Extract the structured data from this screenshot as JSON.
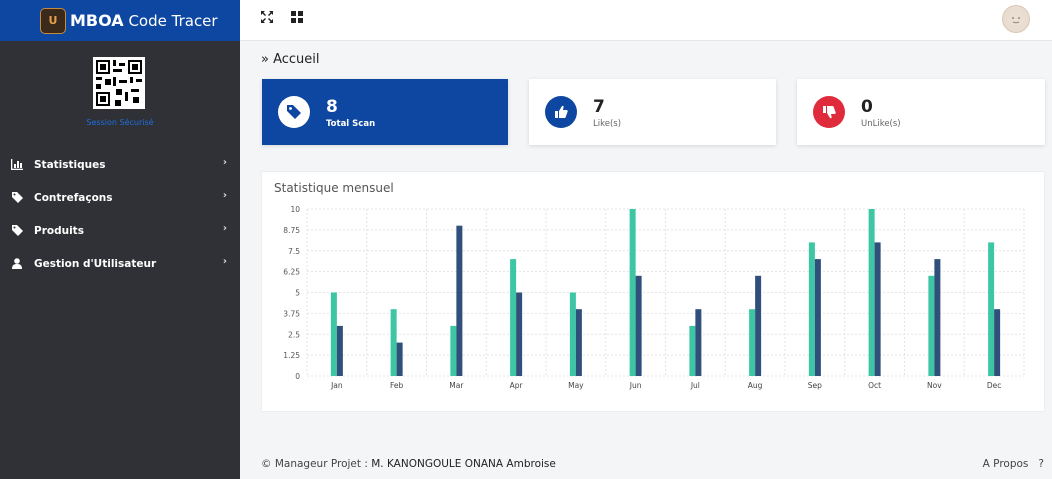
{
  "app": {
    "brand_logo_text": "U",
    "brand_name_bold": "MBOA",
    "brand_name_rest": "Code Tracer"
  },
  "sidebar": {
    "session_text": "Session Sécurisé",
    "items": [
      {
        "label": "Statistiques",
        "icon": "bar-chart-icon"
      },
      {
        "label": "Contrefaçons",
        "icon": "tag-icon"
      },
      {
        "label": "Produits",
        "icon": "tag-icon"
      },
      {
        "label": "Gestion d'Utilisateur",
        "icon": "user-icon"
      }
    ]
  },
  "topbar": {
    "icons": [
      "fullscreen-icon",
      "grid-icon"
    ],
    "avatar": "avatar"
  },
  "breadcrumb": "» Accueil",
  "stats": [
    {
      "value": "8",
      "label": "Total Scan",
      "icon": "tag-icon",
      "accent": "#0d47a1"
    },
    {
      "value": "7",
      "label": "Like(s)",
      "icon": "thumbs-up-icon",
      "accent": "#0d47a1"
    },
    {
      "value": "0",
      "label": "UnLike(s)",
      "icon": "thumbs-down-icon",
      "accent": "#e02b3c"
    }
  ],
  "chart_panel": {
    "title": "Statistique mensuel"
  },
  "chart_data": {
    "type": "bar",
    "categories": [
      "Jan",
      "Feb",
      "Mar",
      "Apr",
      "May",
      "Jun",
      "Jul",
      "Aug",
      "Sep",
      "Oct",
      "Nov",
      "Dec"
    ],
    "series": [
      {
        "values": [
          5,
          4,
          3,
          7,
          5,
          10,
          3,
          4,
          8,
          10,
          6,
          8
        ],
        "color": "#3cc6a3"
      },
      {
        "values": [
          3,
          2,
          9,
          5,
          4,
          6,
          4,
          6,
          7,
          8,
          7,
          4
        ],
        "color": "#304f7a"
      }
    ],
    "ylim": [
      0,
      10
    ],
    "yticks": [
      "0",
      "1.25",
      "2.5",
      "3.75",
      "5",
      "6.25",
      "7.5",
      "8.75",
      "10"
    ],
    "grid": true
  },
  "footer": {
    "prefix": "© Manageur Projet : ",
    "name": "M. KANONGOULE ONANA Ambroise",
    "about": "A Propos",
    "help": "?"
  }
}
